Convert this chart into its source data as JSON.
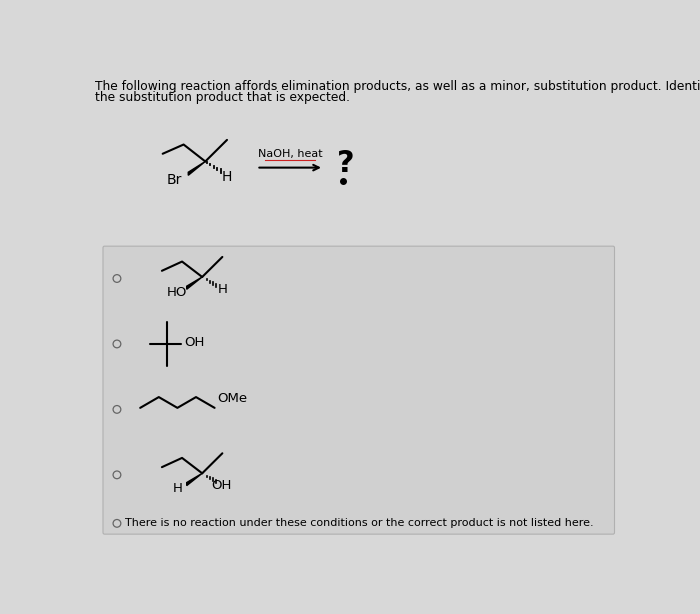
{
  "title_line1": "The following reaction affords elimination products, as well as a minor, substitution product. Identify",
  "title_line2": "the substitution product that is expected.",
  "bg_color": "#d8d8d8",
  "box_color": "#d0d0d0",
  "box_edge_color": "#aaaaaa",
  "text_color": "#000000",
  "font_size_title": 8.8,
  "naoh_label": "NaOH, heat",
  "question_mark": "?",
  "last_option": "There is no reaction under these conditions or the correct product is not listed here.",
  "arrow_underline_color": "#cc2222",
  "molecule_lw": 1.5,
  "font_size_mol": 9.5,
  "font_size_qmark": 22,
  "font_size_naoh": 8.0,
  "font_size_last": 8.0
}
